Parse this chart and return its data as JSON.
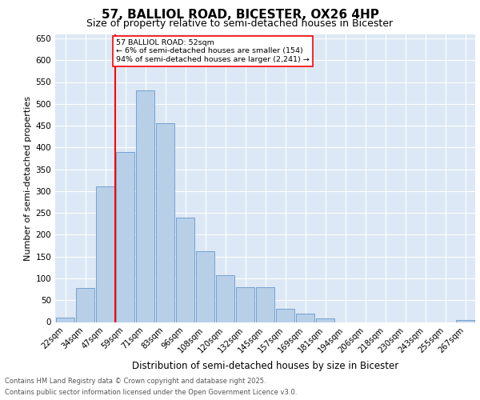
{
  "title": "57, BALLIOL ROAD, BICESTER, OX26 4HP",
  "subtitle": "Size of property relative to semi-detached houses in Bicester",
  "xlabel": "Distribution of semi-detached houses by size in Bicester",
  "ylabel": "Number of semi-detached properties",
  "categories": [
    "22sqm",
    "34sqm",
    "47sqm",
    "59sqm",
    "71sqm",
    "83sqm",
    "96sqm",
    "108sqm",
    "120sqm",
    "132sqm",
    "145sqm",
    "157sqm",
    "169sqm",
    "181sqm",
    "194sqm",
    "206sqm",
    "218sqm",
    "230sqm",
    "243sqm",
    "255sqm",
    "267sqm"
  ],
  "values": [
    10,
    78,
    310,
    390,
    530,
    455,
    240,
    162,
    107,
    80,
    80,
    30,
    20,
    8,
    0,
    0,
    0,
    0,
    0,
    0,
    5
  ],
  "bar_color": "#b8cfe8",
  "bar_edge_color": "#6699cc",
  "vline_x": 2.5,
  "vline_color": "red",
  "vline_label": "57 BALLIOL ROAD: 52sqm",
  "annotation_line1": "← 6% of semi-detached houses are smaller (154)",
  "annotation_line2": "94% of semi-detached houses are larger (2,241) →",
  "ylim": [
    0,
    660
  ],
  "yticks": [
    0,
    50,
    100,
    150,
    200,
    250,
    300,
    350,
    400,
    450,
    500,
    550,
    600,
    650
  ],
  "background_color": "#dce8f5",
  "plot_background": "#dce8f5",
  "footer_line1": "Contains HM Land Registry data © Crown copyright and database right 2025.",
  "footer_line2": "Contains public sector information licensed under the Open Government Licence v3.0.",
  "title_fontsize": 11,
  "subtitle_fontsize": 9
}
